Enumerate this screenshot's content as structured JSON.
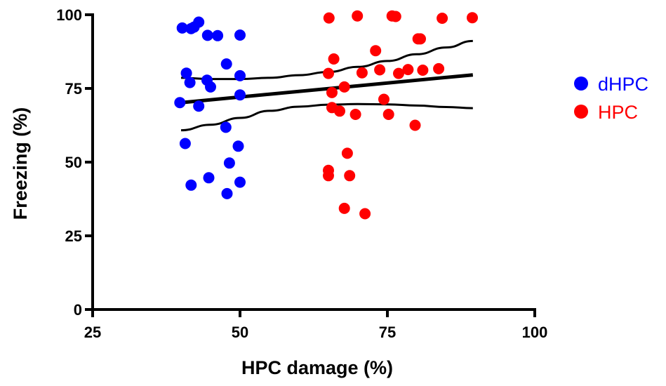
{
  "chart_data": {
    "type": "scatter",
    "xlabel": "HPC damage (%)",
    "ylabel": "Freezing (%)",
    "xlim": [
      25,
      100
    ],
    "ylim": [
      0,
      100
    ],
    "x_ticks": [
      "25",
      "50",
      "75",
      "100"
    ],
    "y_ticks": [
      "0",
      "25",
      "50",
      "75",
      "100"
    ],
    "grid": false,
    "legend_position": "right",
    "series": [
      {
        "name": "dHPC",
        "color": "#0000ff",
        "points": [
          [
            40.2,
            95.5
          ],
          [
            41.7,
            95.3
          ],
          [
            42.2,
            95.8
          ],
          [
            43.0,
            97.5
          ],
          [
            44.5,
            93.0
          ],
          [
            46.2,
            92.9
          ],
          [
            50.0,
            93.1
          ],
          [
            47.7,
            83.3
          ],
          [
            40.9,
            80.2
          ],
          [
            41.5,
            77.0
          ],
          [
            44.4,
            77.8
          ],
          [
            45.0,
            75.5
          ],
          [
            50.0,
            79.3
          ],
          [
            50.0,
            72.8
          ],
          [
            39.8,
            70.2
          ],
          [
            43.0,
            69.0
          ],
          [
            47.6,
            61.8
          ],
          [
            40.7,
            56.3
          ],
          [
            49.7,
            55.4
          ],
          [
            48.2,
            49.7
          ],
          [
            41.7,
            42.2
          ],
          [
            44.7,
            44.7
          ],
          [
            50.0,
            43.2
          ],
          [
            47.8,
            39.3
          ]
        ]
      },
      {
        "name": "HPC",
        "color": "#ff0000",
        "points": [
          [
            65.1,
            98.9
          ],
          [
            69.9,
            99.6
          ],
          [
            75.8,
            99.6
          ],
          [
            76.4,
            99.4
          ],
          [
            84.3,
            98.8
          ],
          [
            89.4,
            99.0
          ],
          [
            80.2,
            91.8
          ],
          [
            80.6,
            91.8
          ],
          [
            73.0,
            87.8
          ],
          [
            65.9,
            85.0
          ],
          [
            65.0,
            80.1
          ],
          [
            70.7,
            80.3
          ],
          [
            73.7,
            81.3
          ],
          [
            76.9,
            80.1
          ],
          [
            78.5,
            81.4
          ],
          [
            81.0,
            81.2
          ],
          [
            83.7,
            81.7
          ],
          [
            67.7,
            75.5
          ],
          [
            65.6,
            73.6
          ],
          [
            74.4,
            71.3
          ],
          [
            65.6,
            68.5
          ],
          [
            66.9,
            67.3
          ],
          [
            69.6,
            66.2
          ],
          [
            75.2,
            66.2
          ],
          [
            79.7,
            62.5
          ],
          [
            68.2,
            53.0
          ],
          [
            65.0,
            47.2
          ],
          [
            65.0,
            45.4
          ],
          [
            68.6,
            45.4
          ],
          [
            67.7,
            34.3
          ],
          [
            71.2,
            32.5
          ]
        ]
      }
    ],
    "fit": {
      "type": "linear_regression_with_95ci",
      "line": [
        [
          40,
          70.2
        ],
        [
          89.5,
          79.6
        ]
      ],
      "upper_band": [
        [
          40,
          78.6
        ],
        [
          45,
          78.2
        ],
        [
          50,
          78.2
        ],
        [
          55,
          78.6
        ],
        [
          60,
          79.5
        ],
        [
          65,
          80.6
        ],
        [
          70,
          82.3
        ],
        [
          75,
          84.3
        ],
        [
          80,
          86.6
        ],
        [
          85,
          88.9
        ],
        [
          89.5,
          91.1
        ]
      ],
      "lower_band": [
        [
          40,
          60.8
        ],
        [
          45,
          62.7
        ],
        [
          50,
          65.0
        ],
        [
          55,
          67.4
        ],
        [
          60,
          68.8
        ],
        [
          65,
          69.5
        ],
        [
          70,
          69.7
        ],
        [
          75,
          69.6
        ],
        [
          80,
          69.2
        ],
        [
          85,
          68.7
        ],
        [
          89.5,
          68.3
        ]
      ]
    }
  }
}
